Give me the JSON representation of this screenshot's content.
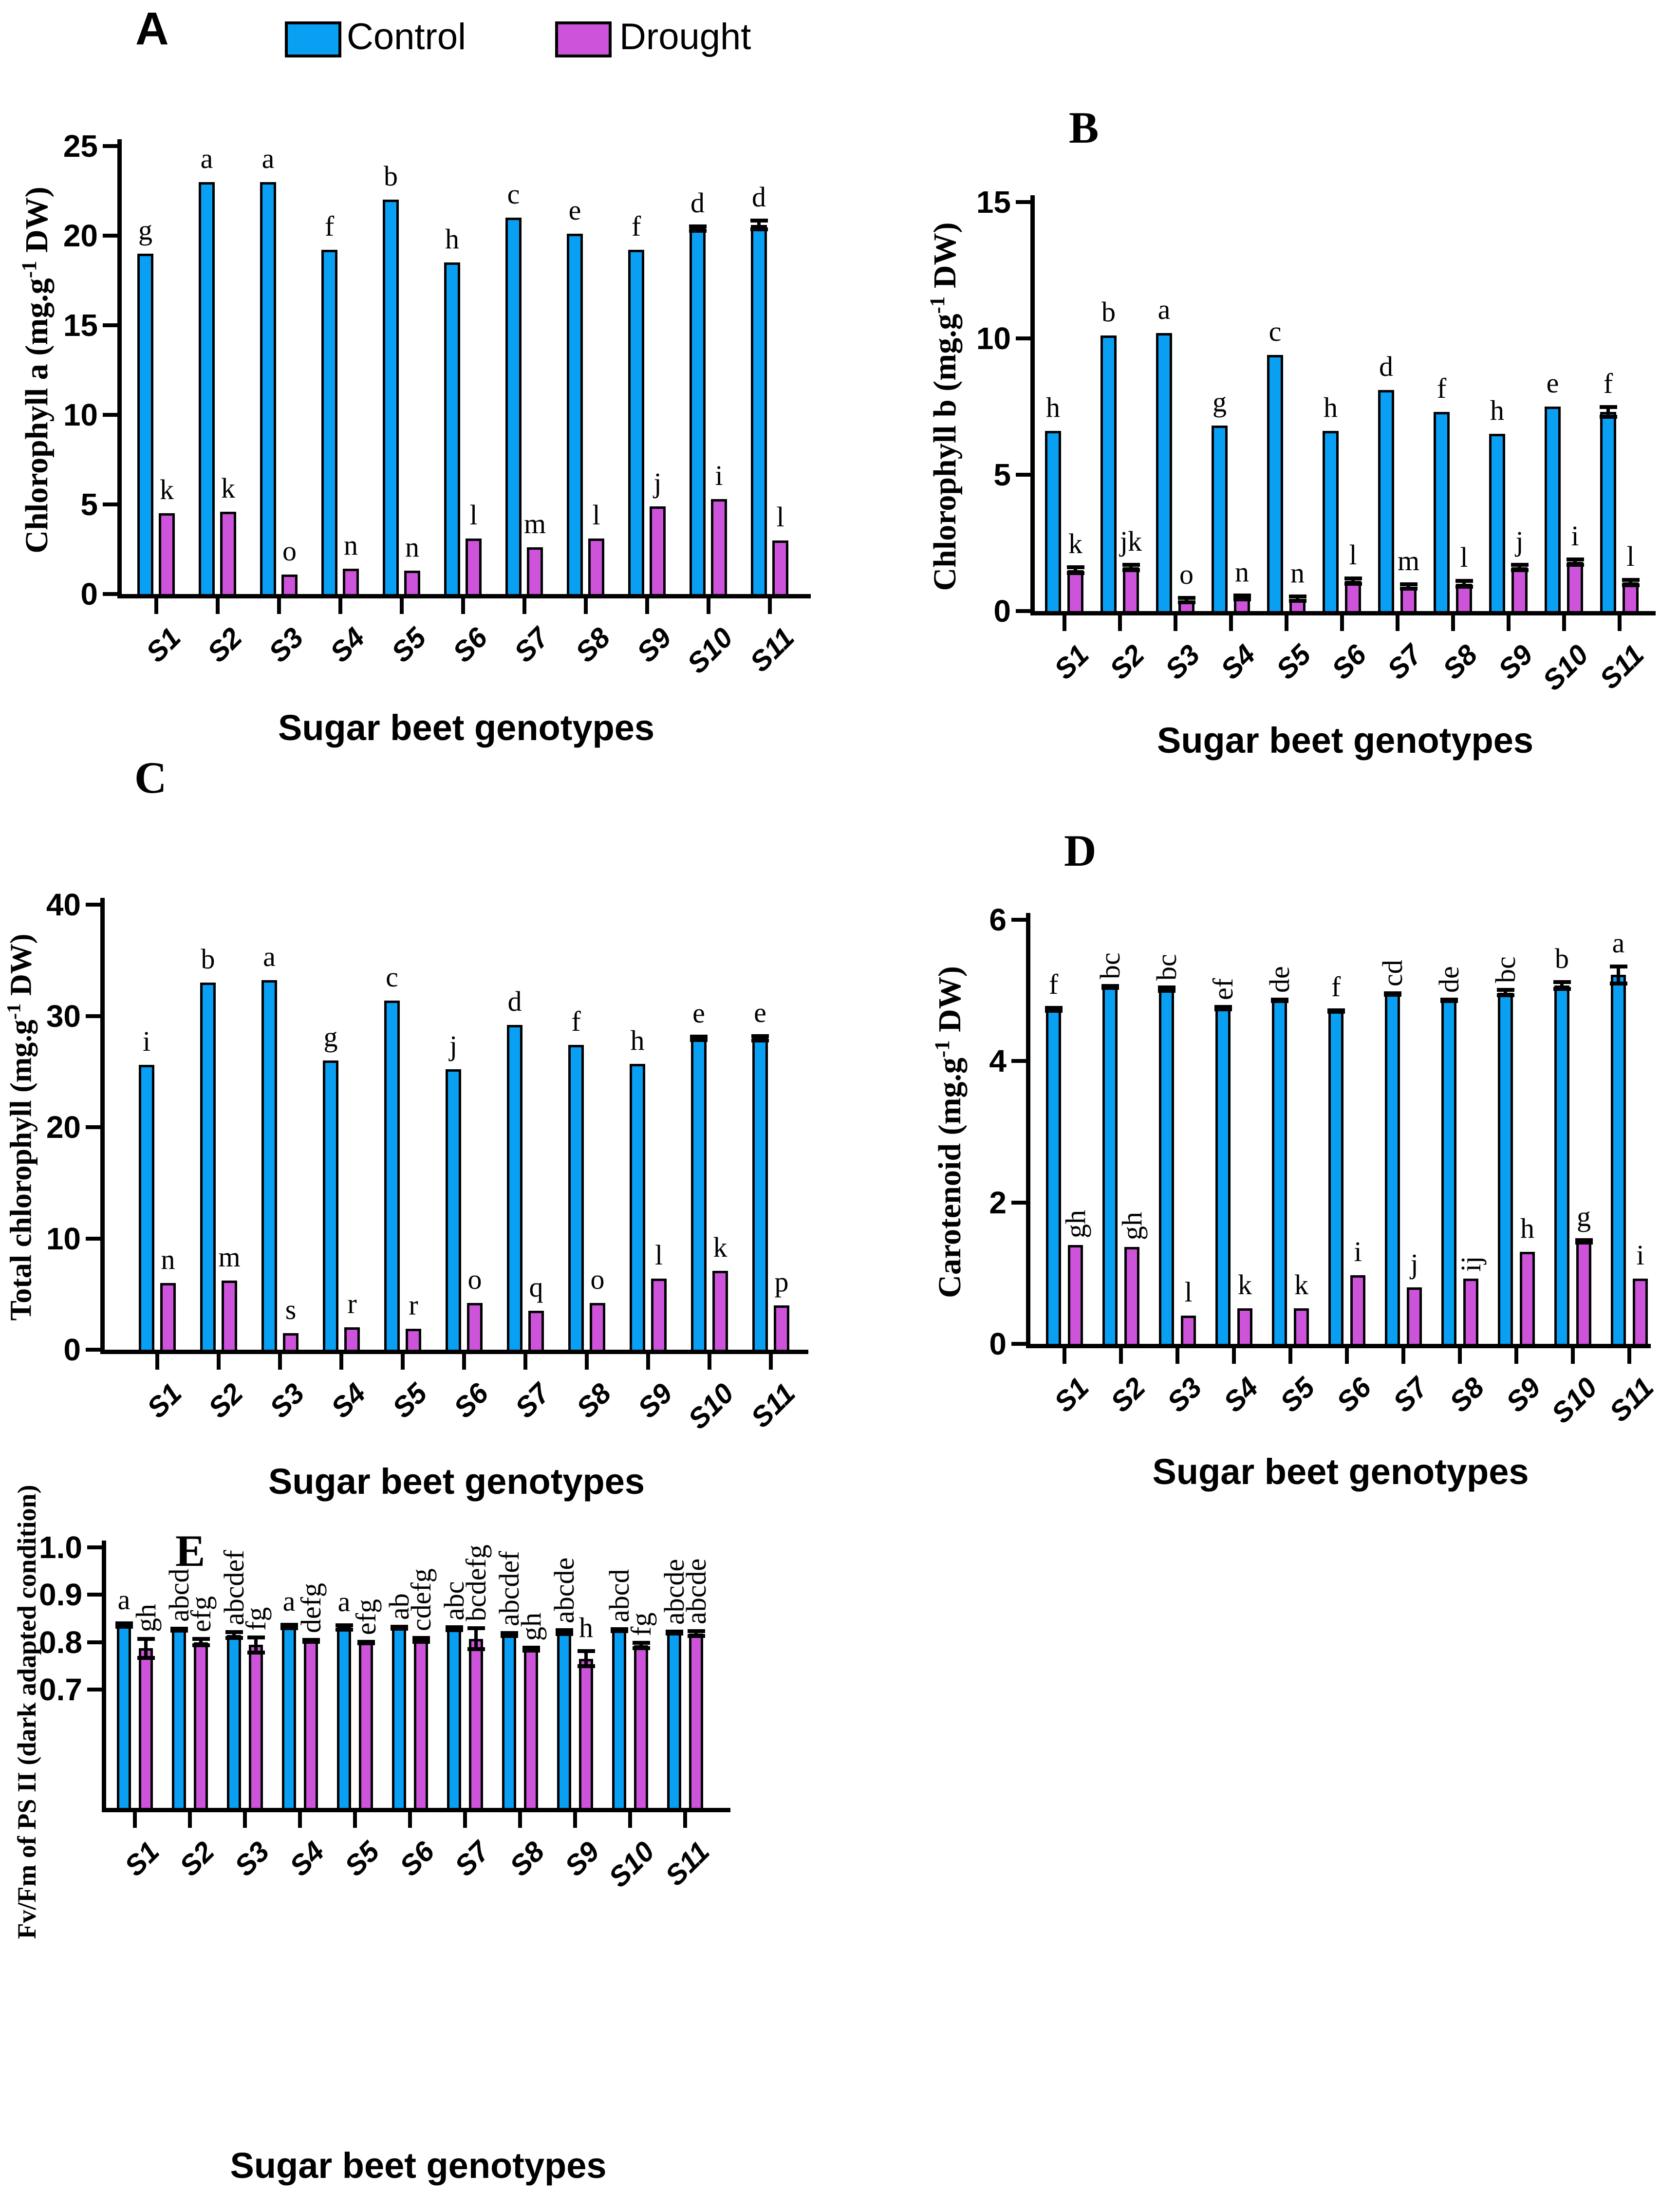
{
  "figure": {
    "x_axis_title": "Sugar beet genotypes",
    "categories": [
      "S1",
      "S2",
      "S3",
      "S4",
      "S5",
      "S6",
      "S7",
      "S8",
      "S9",
      "S10",
      "S11"
    ],
    "legend": {
      "position": "top",
      "items": [
        {
          "label": "Control",
          "color": "#09a0f4"
        },
        {
          "label": "Drought",
          "color": "#cd53da"
        }
      ]
    }
  },
  "chart_data": [
    {
      "id": "A",
      "panel_label": "A",
      "type": "bar",
      "grid": false,
      "ylabel": {
        "pre": "Chlorophyll a (mg.g",
        "sup": "-1",
        "post": " DW)"
      },
      "xlabel": "Sugar beet genotypes",
      "ylim": [
        0,
        25
      ],
      "yticks": {
        "values": [
          0,
          5,
          10,
          15,
          20,
          25
        ],
        "labels": [
          "0",
          "5",
          "10",
          "15",
          "20",
          "25"
        ]
      },
      "rotate_multi_letters": false,
      "series": [
        {
          "name": "Control",
          "color": "#09a0f4",
          "values": [
            19.0,
            23.0,
            23.0,
            19.2,
            22.0,
            18.5,
            21.0,
            20.1,
            19.2,
            20.4,
            20.6
          ],
          "errors": [
            0,
            0,
            0,
            0,
            0,
            0,
            0,
            0,
            0,
            0.12,
            0.25
          ],
          "letters": [
            "g",
            "a",
            "a",
            "f",
            "b",
            "h",
            "c",
            "e",
            "f",
            "d",
            "d"
          ]
        },
        {
          "name": "Drought",
          "color": "#cd53da",
          "values": [
            4.5,
            4.6,
            1.1,
            1.4,
            1.3,
            3.1,
            2.6,
            3.1,
            4.9,
            5.3,
            3.0
          ],
          "errors": [
            0,
            0,
            0,
            0,
            0,
            0,
            0,
            0,
            0,
            0,
            0
          ],
          "letters": [
            "k",
            "k",
            "o",
            "n",
            "n",
            "l",
            "m",
            "l",
            "j",
            "i",
            "l"
          ]
        }
      ]
    },
    {
      "id": "B",
      "panel_label": "B",
      "type": "bar",
      "grid": false,
      "ylabel": {
        "pre": "Chlorophyll b (mg.g",
        "sup": "-1",
        "post": " DW)"
      },
      "xlabel": "Sugar beet genotypes",
      "ylim": [
        0,
        15
      ],
      "yticks": {
        "values": [
          0,
          5,
          10,
          15
        ],
        "labels": [
          "0",
          "5",
          "10",
          "15"
        ]
      },
      "rotate_multi_letters": false,
      "series": [
        {
          "name": "Control",
          "color": "#09a0f4",
          "values": [
            6.6,
            10.1,
            10.2,
            6.8,
            9.4,
            6.6,
            8.1,
            7.3,
            6.5,
            7.5,
            7.3
          ],
          "errors": [
            0,
            0,
            0,
            0,
            0,
            0,
            0,
            0,
            0,
            0,
            0.18
          ],
          "letters": [
            "h",
            "b",
            "a",
            "g",
            "c",
            "h",
            "d",
            "f",
            "h",
            "e",
            "f"
          ]
        },
        {
          "name": "Drought",
          "color": "#cd53da",
          "values": [
            1.5,
            1.6,
            0.4,
            0.5,
            0.45,
            1.1,
            0.9,
            1.0,
            1.6,
            1.8,
            1.05
          ],
          "errors": [
            0.1,
            0.1,
            0.08,
            0.08,
            0.08,
            0.1,
            0.08,
            0.1,
            0.1,
            0.1,
            0.1
          ],
          "letters": [
            "k",
            "jk",
            "o",
            "n",
            "n",
            "l",
            "m",
            "l",
            "j",
            "i",
            "l"
          ]
        }
      ]
    },
    {
      "id": "C",
      "panel_label": "C",
      "type": "bar",
      "grid": false,
      "ylabel": {
        "pre": "Total chlorophyll (mg.g",
        "sup": "-1",
        "post": " DW)"
      },
      "xlabel": "Sugar beet genotypes",
      "ylim": [
        0,
        40
      ],
      "yticks": {
        "values": [
          0,
          10,
          20,
          30,
          40
        ],
        "labels": [
          "0",
          "10",
          "20",
          "30",
          "40"
        ]
      },
      "rotate_multi_letters": false,
      "series": [
        {
          "name": "Control",
          "color": "#09a0f4",
          "values": [
            25.6,
            33.0,
            33.2,
            26.0,
            31.4,
            25.2,
            29.2,
            27.4,
            25.7,
            28.0,
            28.0
          ],
          "errors": [
            0,
            0,
            0,
            0,
            0,
            0,
            0,
            0,
            0,
            0.15,
            0.2
          ],
          "letters": [
            "i",
            "b",
            "a",
            "g",
            "c",
            "j",
            "d",
            "f",
            "h",
            "e",
            "e"
          ]
        },
        {
          "name": "Drought",
          "color": "#cd53da",
          "values": [
            6.0,
            6.2,
            1.5,
            2.0,
            1.9,
            4.2,
            3.5,
            4.2,
            6.4,
            7.1,
            4.0
          ],
          "errors": [
            0,
            0,
            0,
            0,
            0,
            0,
            0,
            0,
            0,
            0,
            0
          ],
          "letters": [
            "n",
            "m",
            "s",
            "r",
            "r",
            "o",
            "q",
            "o",
            "l",
            "k",
            "p"
          ]
        }
      ]
    },
    {
      "id": "D",
      "panel_label": "D",
      "type": "bar",
      "grid": false,
      "ylabel": {
        "pre": "Carotenoid (mg.g",
        "sup": "-1",
        "post": " DW)"
      },
      "xlabel": "Sugar beet genotypes",
      "ylim": [
        0,
        6
      ],
      "yticks": {
        "values": [
          0,
          2,
          4,
          6
        ],
        "labels": [
          "0",
          "2",
          "4",
          "6"
        ]
      },
      "rotate_multi_letters": true,
      "series": [
        {
          "name": "Control",
          "color": "#09a0f4",
          "values": [
            4.73,
            5.05,
            5.02,
            4.75,
            4.86,
            4.71,
            4.95,
            4.86,
            4.97,
            5.07,
            5.22
          ],
          "errors": [
            0.02,
            0.015,
            0.025,
            0.02,
            0.01,
            0.01,
            0.01,
            0.01,
            0.04,
            0.045,
            0.12
          ],
          "letters": [
            "f",
            "bc",
            "bc",
            "ef",
            "de",
            "f",
            "cd",
            "de",
            "bc",
            "b",
            "a"
          ]
        },
        {
          "name": "Drought",
          "color": "#cd53da",
          "values": [
            1.4,
            1.37,
            0.4,
            0.5,
            0.5,
            0.97,
            0.8,
            0.92,
            1.3,
            1.45,
            0.92
          ],
          "errors": [
            0,
            0,
            0,
            0,
            0,
            0,
            0,
            0,
            0,
            0.02,
            0
          ],
          "letters": [
            "gh",
            "gh",
            "l",
            "k",
            "k",
            "i",
            "j",
            "ij",
            "h",
            "g",
            "i"
          ]
        }
      ]
    },
    {
      "id": "E",
      "panel_label": "E",
      "type": "bar",
      "grid": false,
      "ylabel": {
        "pre": "Fv/Fm of PS II (dark adapted condition)",
        "sup": "",
        "post": ""
      },
      "xlabel": "Sugar beet genotypes",
      "ylim": [
        0.45,
        1.0
      ],
      "yticks": {
        "values": [
          0.7,
          0.8,
          0.9,
          1.0
        ],
        "labels": [
          "0.7",
          "0.8",
          "0.9",
          "1.0"
        ]
      },
      "rotate_multi_letters": true,
      "series": [
        {
          "name": "Control",
          "color": "#09a0f4",
          "values": [
            0.836,
            0.826,
            0.815,
            0.833,
            0.831,
            0.83,
            0.828,
            0.816,
            0.821,
            0.825,
            0.82
          ],
          "errors": [
            0.004,
            0.002,
            0.006,
            0.004,
            0.005,
            0.002,
            0.003,
            0.003,
            0.004,
            0.002,
            0.002
          ],
          "letters": [
            "a",
            "abcd",
            "abcdef",
            "a",
            "a",
            "ab",
            "abc",
            "abcdef",
            "abcde",
            "abcd",
            "abcde"
          ]
        },
        {
          "name": "Drought",
          "color": "#cd53da",
          "values": [
            0.787,
            0.8,
            0.794,
            0.803,
            0.799,
            0.805,
            0.807,
            0.785,
            0.765,
            0.793,
            0.818
          ],
          "errors": [
            0.02,
            0.007,
            0.016,
            0.002,
            0.002,
            0.004,
            0.022,
            0.003,
            0.016,
            0.006,
            0.005
          ],
          "letters": [
            "gh",
            "efg",
            "fg",
            "defg",
            "efg",
            "cdefg",
            "bcdefg",
            "gh",
            "h",
            "fg",
            "abcde"
          ]
        }
      ]
    }
  ]
}
